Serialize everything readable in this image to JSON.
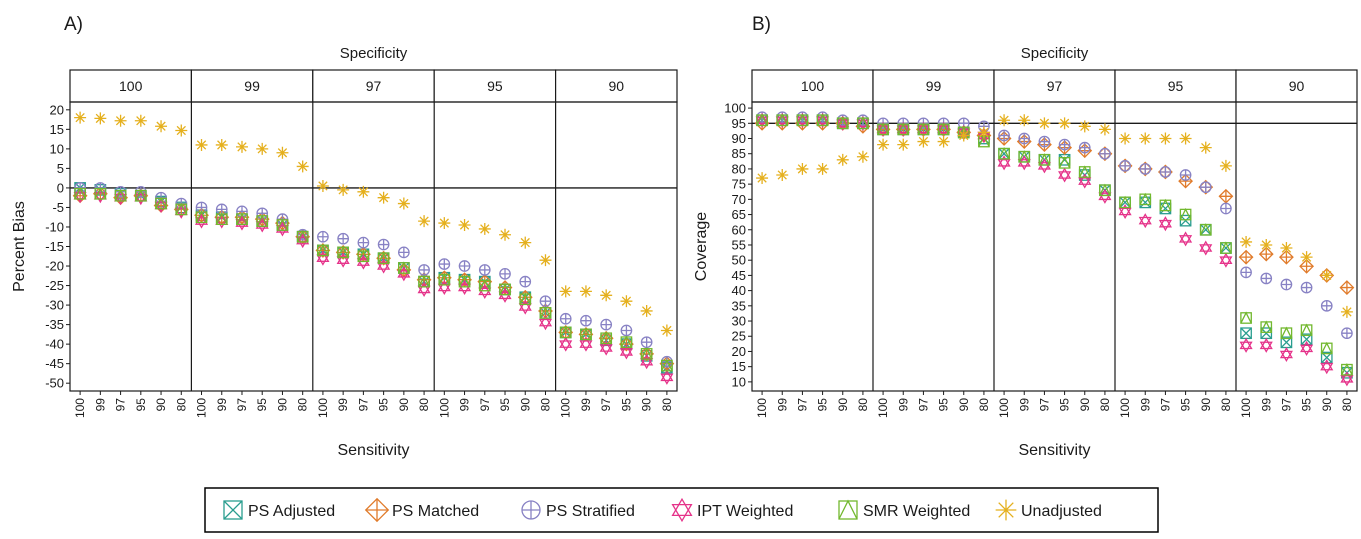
{
  "colors": {
    "PS Adjusted": "#2a9d8f",
    "PS Matched": "#e07b2b",
    "PS Stratified": "#8882c4",
    "IPT Weighted": "#e5338a",
    "SMR Weighted": "#72b82e",
    "Unadjusted": "#e5b01e"
  },
  "legend": {
    "items": [
      {
        "label": "PS Adjusted",
        "icon": "square-x-icon"
      },
      {
        "label": "PS Matched",
        "icon": "diamond-plus-icon"
      },
      {
        "label": "PS Stratified",
        "icon": "circle-plus-icon"
      },
      {
        "label": "IPT Weighted",
        "icon": "star-of-david-icon"
      },
      {
        "label": "SMR Weighted",
        "icon": "square-triangle-icon"
      },
      {
        "label": "Unadjusted",
        "icon": "asterisk-icon"
      }
    ]
  },
  "chart_data": [
    {
      "type": "scatter",
      "panel_label": "A)",
      "facet_title": "Specificity",
      "facets": [
        "100",
        "99",
        "97",
        "95",
        "90"
      ],
      "x_categories": [
        "100",
        "99",
        "97",
        "95",
        "90",
        "80"
      ],
      "xlabel": "Sensitivity",
      "ylabel": "Percent Bias",
      "ylim": [
        -52,
        22
      ],
      "yticks": [
        20,
        15,
        10,
        5,
        0,
        -5,
        -10,
        -15,
        -20,
        -25,
        -30,
        -35,
        -40,
        -45,
        -50
      ],
      "reference_line": 0,
      "series": [
        {
          "name": "PS Adjusted",
          "values": [
            [
              0,
              -0.5,
              -1.5,
              -2,
              -3.5,
              -5
            ],
            [
              -7,
              -7.5,
              -8,
              -8.5,
              -9.5,
              -12.5
            ],
            [
              -16,
              -16.5,
              -17,
              -18,
              -20.5,
              -24
            ],
            [
              -23,
              -23.5,
              -24,
              -26,
              -28,
              -32
            ],
            [
              -37,
              -37.5,
              -39,
              -40,
              -43,
              -46
            ]
          ]
        },
        {
          "name": "PS Matched",
          "values": [
            [
              -2,
              -1.5,
              -2.5,
              -2,
              -4.5,
              -5.5
            ],
            [
              -7,
              -7.5,
              -7.5,
              -8,
              -9,
              -12.5
            ],
            [
              -16,
              -16.5,
              -17,
              -18,
              -21,
              -23.5
            ],
            [
              -23,
              -23.5,
              -24,
              -25.5,
              -28,
              -31.5
            ],
            [
              -37,
              -37.5,
              -38.5,
              -40,
              -42.5,
              -45
            ]
          ]
        },
        {
          "name": "PS Stratified",
          "values": [
            [
              0,
              0,
              -1,
              -1,
              -2.5,
              -4
            ],
            [
              -5,
              -5.5,
              -6,
              -6.5,
              -8,
              -12
            ],
            [
              -12.5,
              -13,
              -14,
              -14.5,
              -16.5,
              -21
            ],
            [
              -19.5,
              -20,
              -21,
              -22,
              -24,
              -29
            ],
            [
              -33.5,
              -34,
              -35,
              -36.5,
              -39.5,
              -44.5
            ]
          ]
        },
        {
          "name": "IPT Weighted",
          "values": [
            [
              -2,
              -2,
              -2.5,
              -2.5,
              -4.5,
              -6
            ],
            [
              -8.5,
              -8.5,
              -9,
              -9.5,
              -10.5,
              -13.5
            ],
            [
              -18,
              -18.5,
              -19,
              -20,
              -22,
              -26
            ],
            [
              -25.5,
              -25.5,
              -26.5,
              -27.5,
              -30.5,
              -34.5
            ],
            [
              -40,
              -40,
              -41,
              -42,
              -44.5,
              -48.5
            ]
          ]
        },
        {
          "name": "SMR Weighted",
          "values": [
            [
              -1.5,
              -1.5,
              -2,
              -2,
              -4,
              -5.5
            ],
            [
              -7.5,
              -8,
              -8,
              -8.5,
              -9.5,
              -12.5
            ],
            [
              -16,
              -16.5,
              -17.5,
              -18,
              -20.5,
              -24
            ],
            [
              -23.5,
              -24,
              -25,
              -26,
              -28.5,
              -32
            ],
            [
              -37,
              -37.5,
              -38.5,
              -39.5,
              -42.5,
              -45.5
            ]
          ]
        },
        {
          "name": "Unadjusted",
          "values": [
            [
              18,
              17.8,
              17.2,
              17.2,
              15.8,
              14.7
            ],
            [
              11,
              11,
              10.5,
              10,
              9,
              5.5
            ],
            [
              0.5,
              -0.5,
              -1,
              -2.5,
              -4,
              -8.5
            ],
            [
              -9,
              -9.5,
              -10.5,
              -12,
              -14,
              -18.5
            ],
            [
              -26.5,
              -26.5,
              -27.5,
              -29,
              -31.5,
              -36.5
            ]
          ]
        }
      ]
    },
    {
      "type": "scatter",
      "panel_label": "B)",
      "facet_title": "Specificity",
      "facets": [
        "100",
        "99",
        "97",
        "95",
        "90"
      ],
      "x_categories": [
        "100",
        "99",
        "97",
        "95",
        "90",
        "80"
      ],
      "xlabel": "Sensitivity",
      "ylabel": "Coverage",
      "ylim": [
        7,
        102
      ],
      "yticks": [
        100,
        95,
        90,
        85,
        80,
        75,
        70,
        65,
        60,
        55,
        50,
        45,
        40,
        35,
        30,
        25,
        20,
        15,
        10
      ],
      "reference_line": 95,
      "series": [
        {
          "name": "PS Adjusted",
          "values": [
            [
              96,
              96,
              96,
              96,
              95,
              95
            ],
            [
              93,
              93,
              93,
              93,
              92,
              90
            ],
            [
              85,
              84,
              83,
              83,
              78,
              73
            ],
            [
              69,
              69,
              67,
              63,
              60,
              54
            ],
            [
              26,
              26,
              23,
              24,
              18,
              13
            ]
          ]
        },
        {
          "name": "PS Matched",
          "values": [
            [
              95,
              95,
              95,
              95,
              95,
              94
            ],
            [
              93,
              93,
              93,
              93,
              92,
              91
            ],
            [
              90,
              89,
              88,
              87,
              86,
              85
            ],
            [
              81,
              80,
              79,
              76,
              74,
              71
            ],
            [
              51,
              52,
              51,
              48,
              45,
              41
            ]
          ]
        },
        {
          "name": "PS Stratified",
          "values": [
            [
              97,
              97,
              97,
              97,
              96,
              96
            ],
            [
              95,
              95,
              95,
              95,
              95,
              94
            ],
            [
              91,
              90,
              89,
              88,
              87,
              85
            ],
            [
              81,
              80,
              79,
              78,
              74,
              67
            ],
            [
              46,
              44,
              42,
              41,
              35,
              26
            ]
          ]
        },
        {
          "name": "IPT Weighted",
          "values": [
            [
              96,
              96,
              96,
              96,
              95,
              95
            ],
            [
              93,
              93,
              93,
              93,
              92,
              91
            ],
            [
              82,
              82,
              81,
              78,
              76,
              71
            ],
            [
              66,
              63,
              62,
              57,
              54,
              50
            ],
            [
              22,
              22,
              19,
              21,
              15,
              11
            ]
          ]
        },
        {
          "name": "SMR Weighted",
          "values": [
            [
              96,
              96,
              96,
              96,
              95,
              95
            ],
            [
              93,
              93,
              93,
              93,
              92,
              89
            ],
            [
              85,
              84,
              83,
              82,
              79,
              73
            ],
            [
              69,
              70,
              68,
              65,
              60,
              54
            ],
            [
              31,
              28,
              26,
              27,
              21,
              14
            ]
          ]
        },
        {
          "name": "Unadjusted",
          "values": [
            [
              77,
              78,
              80,
              80,
              83,
              84
            ],
            [
              88,
              88,
              89,
              89,
              91,
              92
            ],
            [
              96,
              96,
              95,
              95,
              94,
              93
            ],
            [
              90,
              90,
              90,
              90,
              87,
              81
            ],
            [
              56,
              55,
              54,
              51,
              45,
              33
            ]
          ]
        }
      ]
    }
  ]
}
